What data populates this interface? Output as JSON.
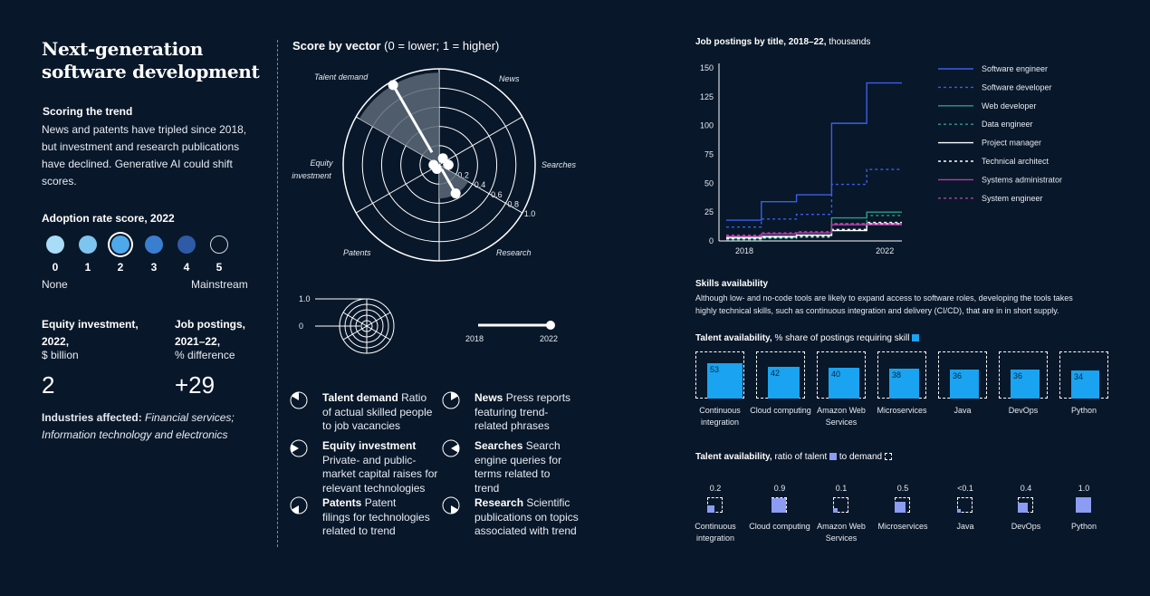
{
  "title": "Next-generation software development",
  "scoring": {
    "heading": "Scoring the trend",
    "text": "News and patents have tripled since 2018, but investment and research publications have declined. Generative AI could shift scores."
  },
  "adoption": {
    "heading": "Adoption rate score, 2022",
    "labels": [
      "0",
      "1",
      "2",
      "3",
      "4",
      "5"
    ],
    "selected": 2,
    "colors": [
      "#a9dcf6",
      "#7dc4f0",
      "#4fa8ea",
      "#3a7ed0",
      "#2e5aa8",
      "#081729"
    ],
    "low_label": "None",
    "high_label": "Mainstream"
  },
  "equity": {
    "heading_line1": "Equity investment,",
    "heading_line2": "2022,",
    "unit": "$ billion",
    "value": "2"
  },
  "jobs": {
    "heading_line1": "Job postings,",
    "heading_line2": "2021–22,",
    "unit": "% difference",
    "value": "+29"
  },
  "industries": {
    "label": "Industries affected:",
    "line1": "Financial services;",
    "line2": "Information technology and electronics"
  },
  "radar": {
    "title_bold": "Score by vector",
    "title_rest": "(0 = lower; 1 = higher)",
    "vector_labels": {
      "talent": "Talent demand",
      "news": "News",
      "searches": "Searches",
      "research": "Research",
      "patents": "Patents",
      "equity_line1": "Equity",
      "equity_line2": "investment"
    },
    "ring_labels": [
      "0.2",
      "0.4",
      "0.6",
      "0.8",
      "1.0"
    ]
  },
  "key": {
    "scale_top": "1.0",
    "scale_bottom": "0",
    "year_start": "2018",
    "year_end": "2022"
  },
  "legend": [
    {
      "name": "Talent demand",
      "l1": "Ratio",
      "l2": "of actual skilled people",
      "l3": "to job vacancies",
      "l4": ""
    },
    {
      "name": "News",
      "l1": "Press reports",
      "l2": "featuring trend-",
      "l3": "related phrases",
      "l4": ""
    },
    {
      "name": "Equity investment",
      "l1": "",
      "l2": "Private- and public-",
      "l3": "market capital raises for",
      "l4": "relevant technologies"
    },
    {
      "name": "Searches",
      "l1": "Search",
      "l2": "engine queries for",
      "l3": "terms related to",
      "l4": "trend"
    },
    {
      "name": "Patents",
      "l1": "Patent",
      "l2": "filings for technologies",
      "l3": "related to trend",
      "l4": ""
    },
    {
      "name": "Research",
      "l1": "Scientific",
      "l2": "publications on topics",
      "l3": "associated with trend",
      "l4": ""
    }
  ],
  "job_chart_heading": {
    "bold": "Job postings by title, 2018–22,",
    "rest": "thousands"
  },
  "skills": {
    "heading": "Skills availability",
    "line1": "Although low- and no-code tools are likely to expand access to software roles, developing the tools takes",
    "line2": "highly technical skills, such as continuous integration and delivery (CI/CD), that are in in short supply.",
    "share_bold": "Talent availability,",
    "share_rest": "% share of postings requiring skill",
    "ratio_bold": "Talent availability,",
    "ratio_mid": "ratio of talent",
    "ratio_end": "to demand"
  },
  "chart_data": [
    {
      "type": "radar",
      "title": "Score by vector",
      "subtitle": "(0 = lower; 1 = higher)",
      "axes": [
        "Talent demand",
        "News",
        "Searches",
        "Research",
        "Patents",
        "Equity investment"
      ],
      "series": [
        {
          "name": "2022",
          "values": [
            0.98,
            0.08,
            0.1,
            0.35,
            0.05,
            0.06
          ]
        },
        {
          "name": "2018",
          "values": [
            0.15,
            0.03,
            0.04,
            0.05,
            0.02,
            0.1
          ]
        }
      ],
      "rlim": [
        0,
        1
      ],
      "ticks": [
        "0.2",
        "0.4",
        "0.6",
        "0.8",
        "1.0"
      ]
    },
    {
      "type": "line",
      "title": "Job postings by title, 2018–22, thousands",
      "ylim": [
        0,
        150
      ],
      "yticks": [
        0,
        25,
        50,
        75,
        100,
        125,
        150
      ],
      "x": [
        2018,
        2019,
        2020,
        2021,
        2022,
        2023
      ],
      "xtick_labels": [
        "2018",
        "2022"
      ],
      "series": [
        {
          "name": "Software engineer",
          "color": "#3a5fe8",
          "dash": "",
          "values": [
            18,
            34,
            40,
            102,
            137,
            137
          ]
        },
        {
          "name": "Software developer",
          "color": "#3a5fe8",
          "dash": "3,3",
          "values": [
            12,
            19,
            23,
            49,
            62,
            62
          ]
        },
        {
          "name": "Web developer",
          "color": "#2e9a8a",
          "dash": "",
          "values": [
            2,
            3,
            5,
            20,
            25,
            25
          ]
        },
        {
          "name": "Data engineer",
          "color": "#2e9a8a",
          "dash": "3,3",
          "values": [
            1,
            2,
            3,
            15,
            22,
            22
          ]
        },
        {
          "name": "Project manager",
          "color": "#ffffff",
          "dash": "",
          "values": [
            3,
            4,
            5,
            9,
            15,
            15
          ]
        },
        {
          "name": "Technical architect",
          "color": "#ffffff",
          "dash": "3,3",
          "values": [
            2,
            3,
            4,
            10,
            16,
            16
          ]
        },
        {
          "name": "Systems administrator",
          "color": "#b63ca8",
          "dash": "",
          "values": [
            4,
            6,
            7,
            14,
            14,
            14
          ]
        },
        {
          "name": "System engineer",
          "color": "#b63ca8",
          "dash": "3,3",
          "values": [
            5,
            7,
            8,
            15,
            15,
            15
          ]
        }
      ]
    },
    {
      "type": "bar",
      "title": "Talent availability, % share of postings requiring skill",
      "categories": [
        "Continuous integration",
        "Cloud computing",
        "Amazon Web Services",
        "Microservices",
        "Java",
        "DevOps",
        "Python"
      ],
      "values": [
        53,
        42,
        40,
        38,
        36,
        36,
        34
      ],
      "ylim": [
        0,
        100
      ],
      "color": "#1aa3f0"
    },
    {
      "type": "bar",
      "title": "Talent availability, ratio of talent to demand",
      "categories": [
        "Continuous integration",
        "Cloud computing",
        "Amazon Web Services",
        "Microservices",
        "Java",
        "DevOps",
        "Python"
      ],
      "values": [
        0.2,
        0.9,
        0.1,
        0.5,
        0.05,
        0.4,
        1.0
      ],
      "value_labels": [
        "0.2",
        "0.9",
        "0.1",
        "0.5",
        "<0.1",
        "0.4",
        "1.0"
      ],
      "ylim": [
        0,
        1
      ],
      "color": "#8c9cf2"
    }
  ]
}
